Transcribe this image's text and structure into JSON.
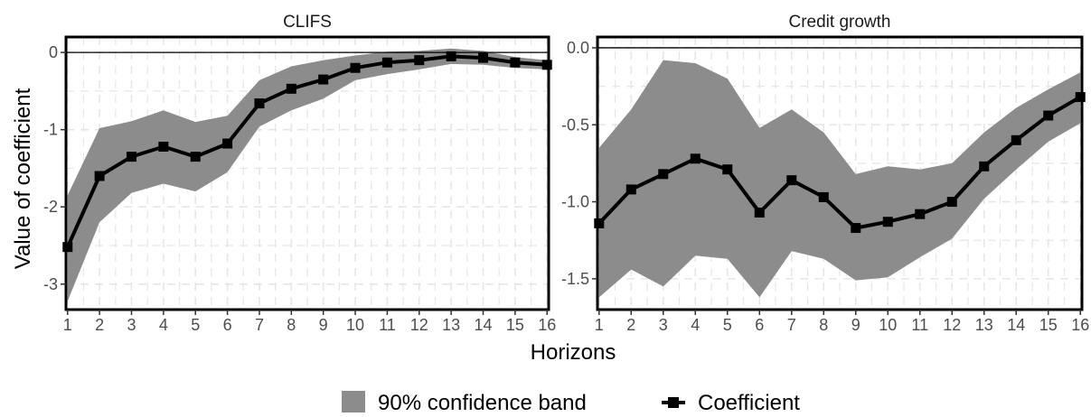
{
  "chart_data": [
    {
      "type": "line",
      "title": "CLIFS",
      "xlabel": "Horizons",
      "ylabel": "Value of coefficient",
      "x": [
        1,
        2,
        3,
        4,
        5,
        6,
        7,
        8,
        9,
        10,
        11,
        12,
        13,
        14,
        15,
        16
      ],
      "ylim": [
        -3.33,
        0.2
      ],
      "yticks": [
        0,
        -1,
        -2,
        -3
      ],
      "ytick_labels": [
        "0",
        "-1",
        "-2",
        "-3"
      ],
      "reference_line": 0,
      "series": [
        {
          "name": "Coefficient",
          "values": [
            -2.52,
            -1.6,
            -1.35,
            -1.22,
            -1.35,
            -1.18,
            -0.66,
            -0.47,
            -0.35,
            -0.2,
            -0.13,
            -0.1,
            -0.05,
            -0.07,
            -0.13,
            -0.16
          ]
        },
        {
          "name": "90% confidence band",
          "lower": [
            -3.22,
            -2.2,
            -1.82,
            -1.7,
            -1.8,
            -1.55,
            -0.96,
            -0.75,
            -0.6,
            -0.36,
            -0.28,
            -0.22,
            -0.15,
            -0.16,
            -0.2,
            -0.22
          ],
          "upper": [
            -1.85,
            -0.98,
            -0.89,
            -0.75,
            -0.9,
            -0.82,
            -0.36,
            -0.18,
            -0.1,
            -0.04,
            0.01,
            0.02,
            0.05,
            0.02,
            -0.06,
            -0.1
          ]
        }
      ]
    },
    {
      "type": "line",
      "title": "Credit growth",
      "xlabel": "Horizons",
      "ylabel": "Value of coefficient",
      "x": [
        1,
        2,
        3,
        4,
        5,
        6,
        7,
        8,
        9,
        10,
        11,
        12,
        13,
        14,
        15,
        16
      ],
      "ylim": [
        -1.7,
        0.07
      ],
      "yticks": [
        0,
        -0.5,
        -1,
        -1.5
      ],
      "ytick_labels": [
        "0.0",
        "-0.5",
        "-1.0",
        "-1.5"
      ],
      "reference_line": 0,
      "series": [
        {
          "name": "Coefficient",
          "values": [
            -1.14,
            -0.92,
            -0.82,
            -0.72,
            -0.79,
            -1.07,
            -0.86,
            -0.97,
            -1.17,
            -1.13,
            -1.08,
            -1.0,
            -0.77,
            -0.6,
            -0.44,
            -0.32
          ]
        },
        {
          "name": "90% confidence band",
          "lower": [
            -1.62,
            -1.44,
            -1.55,
            -1.35,
            -1.37,
            -1.62,
            -1.32,
            -1.37,
            -1.51,
            -1.49,
            -1.36,
            -1.24,
            -0.98,
            -0.79,
            -0.61,
            -0.49
          ],
          "upper": [
            -0.65,
            -0.4,
            -0.08,
            -0.1,
            -0.2,
            -0.52,
            -0.4,
            -0.55,
            -0.82,
            -0.77,
            -0.79,
            -0.75,
            -0.55,
            -0.39,
            -0.27,
            -0.16
          ]
        }
      ]
    }
  ],
  "legend": {
    "position": "bottom",
    "items": [
      {
        "label": "90% confidence band",
        "kind": "band"
      },
      {
        "label": "Coefficient",
        "kind": "line-square"
      }
    ]
  },
  "colors": {
    "band": "#8c8c8c",
    "line": "#000000",
    "grid": "#e6e6e6",
    "reference": "#000000",
    "tick_text": "#4d4d4d",
    "text": "#000000"
  }
}
